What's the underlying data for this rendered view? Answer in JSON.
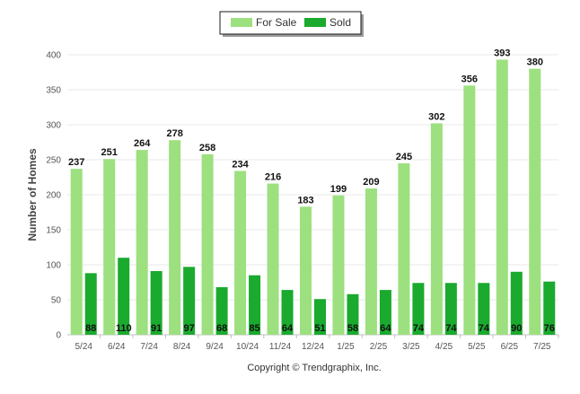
{
  "chart_data": {
    "type": "bar",
    "categories": [
      "5/24",
      "6/24",
      "7/24",
      "8/24",
      "9/24",
      "10/24",
      "11/24",
      "12/24",
      "1/25",
      "2/25",
      "3/25",
      "4/25",
      "5/25",
      "6/25",
      "7/25"
    ],
    "series": [
      {
        "name": "For Sale",
        "color": "#9de07f",
        "values": [
          237,
          251,
          264,
          278,
          258,
          234,
          216,
          183,
          199,
          209,
          245,
          302,
          356,
          393,
          380
        ]
      },
      {
        "name": "Sold",
        "color": "#1aaa2e",
        "values": [
          88,
          110,
          91,
          97,
          68,
          85,
          64,
          51,
          58,
          64,
          74,
          74,
          74,
          90,
          76
        ]
      }
    ],
    "ylabel": "Number of Homes",
    "xlabel": "",
    "ylim": [
      0,
      400
    ],
    "yticks": [
      0,
      50,
      100,
      150,
      200,
      250,
      300,
      350,
      400
    ],
    "grid": true,
    "legend_position": "top-center",
    "data_labels": true
  },
  "footer": {
    "copyright": "Copyright © Trendgraphix, Inc."
  }
}
